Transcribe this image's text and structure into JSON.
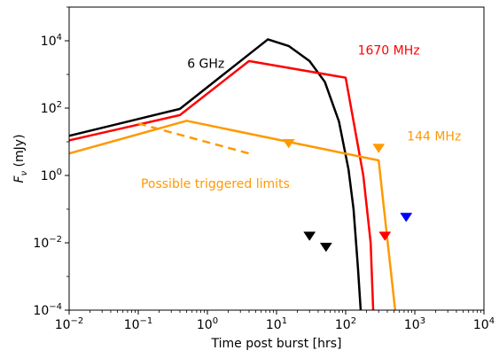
{
  "chart_data": {
    "type": "line",
    "title": "",
    "xlabel": "Time post burst [hrs]",
    "ylabel": "F_ν (mJy)",
    "ylabel_parts": {
      "symbol": "F",
      "subscript": "ν",
      "unit": "(mJy)"
    },
    "xscale": "log",
    "yscale": "log",
    "xlim": [
      0.01,
      10000
    ],
    "ylim": [
      0.0001,
      100000
    ],
    "xticks": [
      {
        "value": 0.01,
        "base": "10",
        "exp": "−2"
      },
      {
        "value": 0.1,
        "base": "10",
        "exp": "−1"
      },
      {
        "value": 1,
        "base": "10",
        "exp": "0"
      },
      {
        "value": 10,
        "base": "10",
        "exp": "1"
      },
      {
        "value": 100,
        "base": "10",
        "exp": "2"
      },
      {
        "value": 1000,
        "base": "10",
        "exp": "3"
      },
      {
        "value": 10000,
        "base": "10",
        "exp": "4"
      }
    ],
    "yticks": [
      {
        "value": 0.0001,
        "base": "10",
        "exp": "−4"
      },
      {
        "value": 0.01,
        "base": "10",
        "exp": "−2"
      },
      {
        "value": 1,
        "base": "10",
        "exp": "0"
      },
      {
        "value": 100,
        "base": "10",
        "exp": "2"
      },
      {
        "value": 10000,
        "base": "10",
        "exp": "4"
      }
    ],
    "grid": false,
    "series": [
      {
        "color": "#000000",
        "style": "solid",
        "points": [
          [
            0.01,
            15
          ],
          [
            0.4,
            95
          ],
          [
            7.5,
            11000
          ],
          [
            15,
            7000
          ],
          [
            30,
            2500
          ],
          [
            50,
            600
          ],
          [
            80,
            40
          ],
          [
            110,
            1.5
          ],
          [
            130,
            0.1
          ],
          [
            150,
            0.002
          ],
          [
            165,
            0.0001
          ]
        ]
      },
      {
        "color": "#ff0000",
        "style": "solid",
        "points": [
          [
            0.01,
            11
          ],
          [
            0.4,
            62
          ],
          [
            4,
            2500
          ],
          [
            100,
            800
          ],
          [
            180,
            1
          ],
          [
            230,
            0.01
          ],
          [
            250,
            0.0001
          ]
        ]
      },
      {
        "color": "#ff9900",
        "style": "solid",
        "points": [
          [
            0.01,
            4.5
          ],
          [
            0.5,
            42
          ],
          [
            300,
            2.8
          ],
          [
            520,
            0.0001
          ]
        ]
      },
      {
        "color": "#ff9900",
        "style": "dashed",
        "points": [
          [
            0.1,
            35
          ],
          [
            4,
            4.5
          ]
        ]
      }
    ],
    "markers": [
      {
        "color": "#ff9900",
        "x": 15,
        "y": 9
      },
      {
        "color": "#ff9900",
        "x": 300,
        "y": 6.5
      },
      {
        "color": "#ff0000",
        "x": 370,
        "y": 0.016
      },
      {
        "color": "#0000ff",
        "x": 750,
        "y": 0.058
      },
      {
        "color": "#000000",
        "x": 30,
        "y": 0.016
      },
      {
        "color": "#000000",
        "x": 52,
        "y": 0.0075
      }
    ],
    "annotations": [
      {
        "text": "6 GHz",
        "color": "#000000",
        "x": 0.95,
        "y": 2000
      },
      {
        "text": "1670 MHz",
        "color": "#ff0000",
        "x": 420,
        "y": 5000
      },
      {
        "text": "144 MHz",
        "color": "#ff9900",
        "x": 1900,
        "y": 14
      },
      {
        "text": "Possible triggered limits",
        "color": "#ff9900",
        "x": 1.3,
        "y": 0.55
      }
    ]
  }
}
